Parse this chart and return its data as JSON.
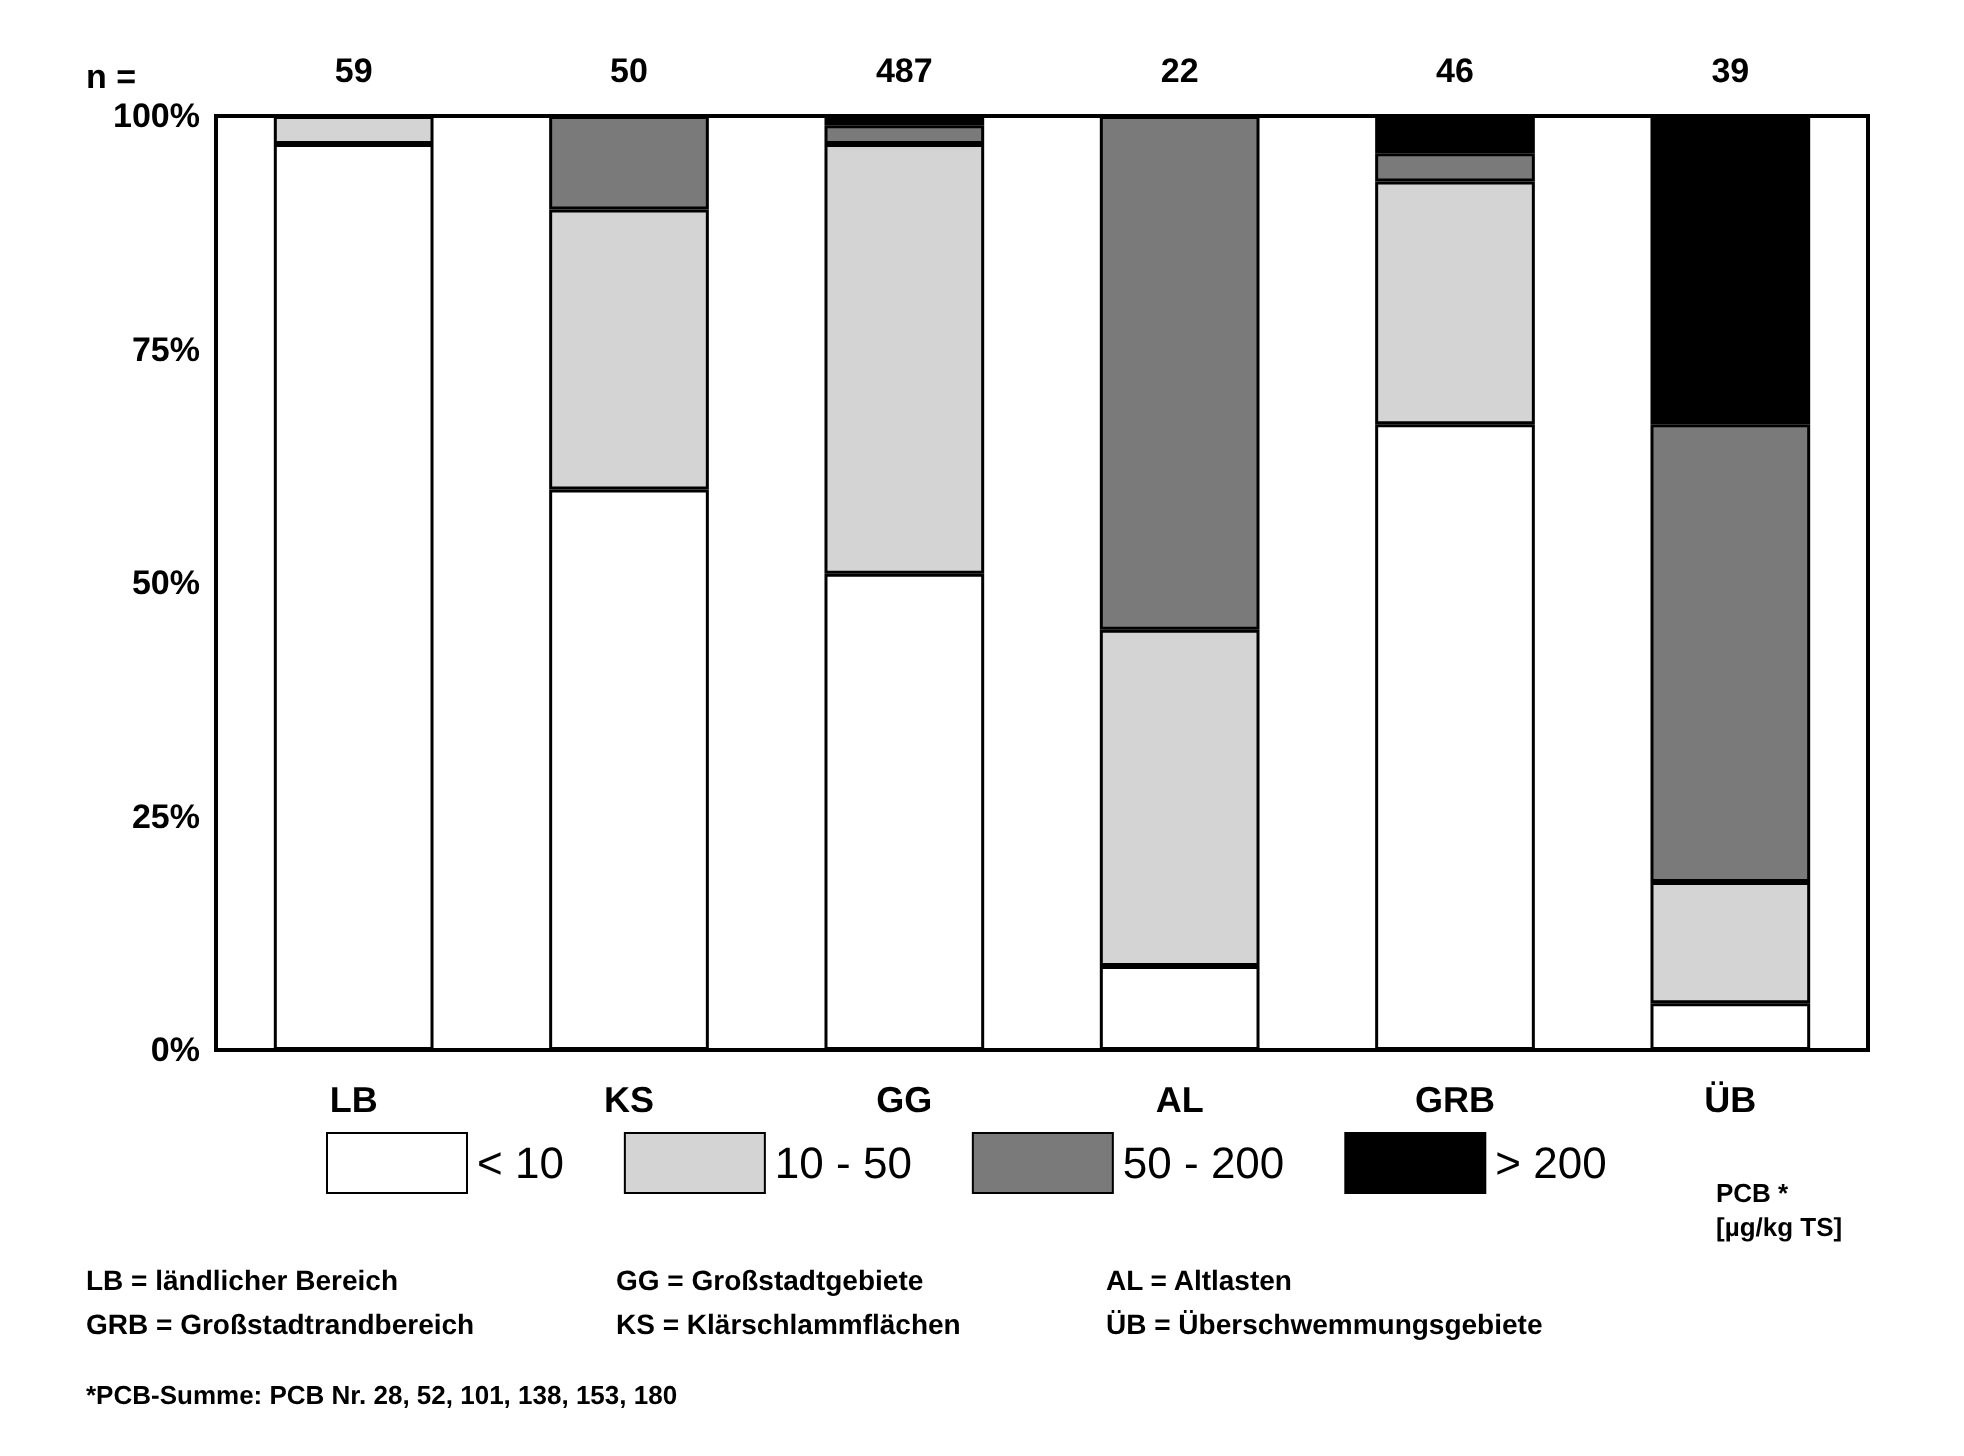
{
  "chart_data": {
    "type": "bar",
    "stacked": true,
    "categories": [
      "LB",
      "KS",
      "GG",
      "AL",
      "GRB",
      "ÜB"
    ],
    "series": [
      {
        "name": "< 10",
        "color": "#ffffff",
        "values": [
          97,
          60,
          51,
          9,
          67,
          5
        ]
      },
      {
        "name": "10 - 50",
        "color": "#d4d4d4",
        "values": [
          3,
          30,
          46,
          36,
          26,
          13
        ]
      },
      {
        "name": "50 - 200",
        "color": "#7a7a7a",
        "values": [
          0,
          10,
          2,
          55,
          3,
          49
        ]
      },
      {
        "name": "> 200",
        "color": "#000000",
        "values": [
          0,
          0,
          1,
          0,
          4,
          33
        ]
      }
    ],
    "ylim": [
      0,
      100
    ],
    "yticks": [
      {
        "value": 0,
        "label": "0%"
      },
      {
        "value": 25,
        "label": "25%"
      },
      {
        "value": 50,
        "label": "50%"
      },
      {
        "value": 75,
        "label": "75%"
      },
      {
        "value": 100,
        "label": "100%"
      }
    ],
    "grid": false,
    "legend": "bottom",
    "legend_title": "PCB *\n[µg/kg TS]",
    "annotations": [
      "n =",
      "59",
      "50",
      "487",
      "22",
      "46",
      "39",
      "LB = ländlicher Bereich",
      "GG = Großstadtgebiete",
      "AL = Altlasten",
      "GRB = Großstadtrandbereich",
      "KS = Klärschlammflächen",
      "ÜB = Überschwemmungsgebiete",
      "*PCB-Summe: PCB Nr. 28, 52, 101, 138, 153, 180"
    ]
  }
}
